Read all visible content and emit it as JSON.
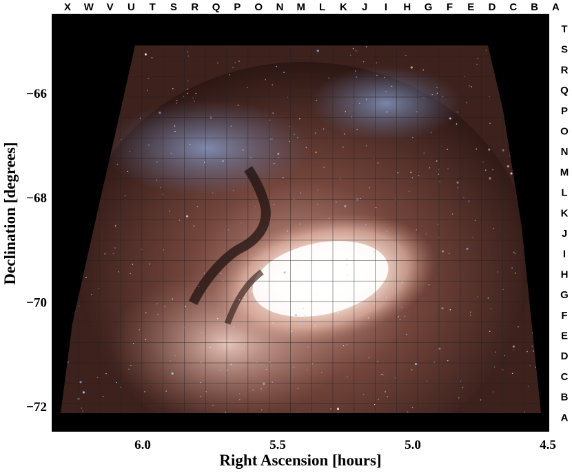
{
  "column_letters": [
    "X",
    "W",
    "V",
    "U",
    "T",
    "S",
    "R",
    "Q",
    "P",
    "O",
    "N",
    "M",
    "L",
    "K",
    "J",
    "I",
    "H",
    "G",
    "F",
    "E",
    "D",
    "C",
    "B",
    "A"
  ],
  "row_letters": [
    "T",
    "S",
    "R",
    "Q",
    "P",
    "O",
    "N",
    "M",
    "L",
    "K",
    "J",
    "I",
    "H",
    "G",
    "F",
    "E",
    "D",
    "C",
    "B",
    "A"
  ],
  "axes": {
    "x_title": "Right Ascension  [hours]",
    "y_title": "Declination  [degrees]",
    "x_ticks": [
      {
        "label": "6.0",
        "value": 6.0
      },
      {
        "label": "5.5",
        "value": 5.5
      },
      {
        "label": "5.0",
        "value": 5.0
      },
      {
        "label": "4.5",
        "value": 4.5
      }
    ],
    "y_ticks": [
      {
        "label": "−66",
        "value": -66
      },
      {
        "label": "−68",
        "value": -68
      },
      {
        "label": "−70",
        "value": -70
      },
      {
        "label": "−72",
        "value": -72
      }
    ]
  },
  "colors": {
    "background": "#000000",
    "dust_red": "#5a2f28",
    "bright_bar": "#fff7ee",
    "star_blue": "#9fc3ff",
    "grid_line": "#2a2a2a"
  }
}
